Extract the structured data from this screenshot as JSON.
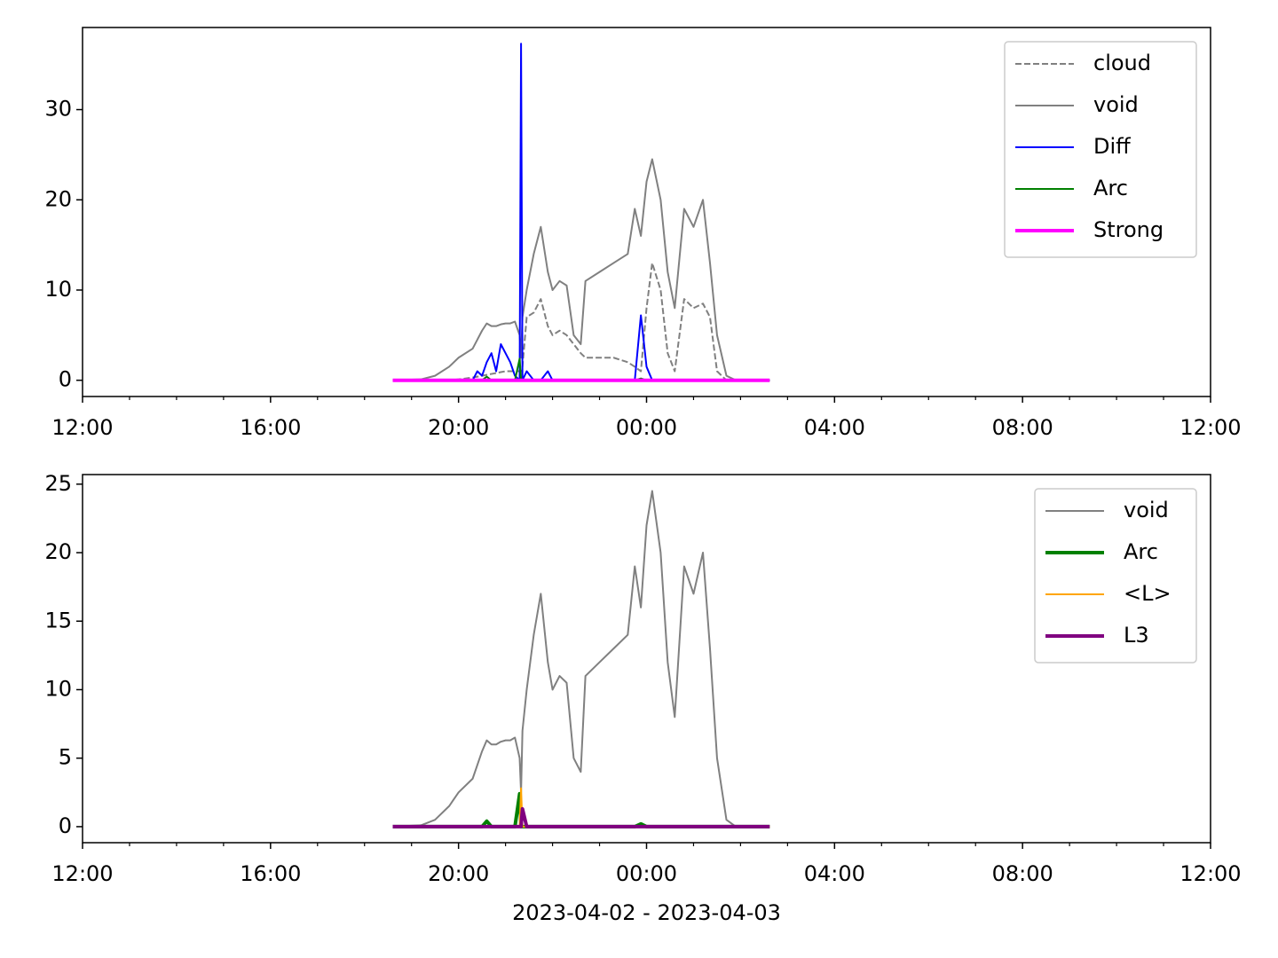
{
  "chart_data": [
    {
      "type": "line",
      "x": [
        18.6,
        19.2,
        19.5,
        19.8,
        20.0,
        20.3,
        20.4,
        20.5,
        20.6,
        20.7,
        20.8,
        20.9,
        21.0,
        21.1,
        21.2,
        21.3,
        21.33,
        21.36,
        21.45,
        21.6,
        21.75,
        21.9,
        22.0,
        22.15,
        22.3,
        22.45,
        22.6,
        22.7,
        23.0,
        23.3,
        23.6,
        23.75,
        23.88,
        24.0,
        24.12,
        24.3,
        24.45,
        24.6,
        24.8,
        25.0,
        25.2,
        25.35,
        25.5,
        25.7,
        25.9,
        26.62
      ],
      "series": [
        {
          "name": "cloud",
          "color": "#808080",
          "linestyle": "dashed",
          "linewidth": 2,
          "values": [
            0,
            0,
            0,
            0,
            0.1,
            0.3,
            0.4,
            0.5,
            0.6,
            0.7,
            0.8,
            0.9,
            1,
            1,
            1,
            1,
            1,
            1.5,
            7,
            7.5,
            9,
            6,
            5,
            5.5,
            5,
            4,
            3,
            2.5,
            2.5,
            2.5,
            2,
            1.5,
            1,
            8,
            13,
            10,
            3,
            1,
            9,
            8,
            8.5,
            7,
            1,
            0,
            0,
            0
          ]
        },
        {
          "name": "void",
          "color": "#808080",
          "linewidth": 2,
          "values": [
            0,
            0.1,
            0.5,
            1.5,
            2.5,
            3.5,
            4.5,
            5.5,
            6.3,
            6,
            6,
            6.2,
            6.3,
            6.3,
            6.5,
            5,
            2.5,
            7,
            10,
            14,
            17,
            12,
            10,
            11,
            10.5,
            5,
            4,
            11,
            12,
            13,
            14,
            19,
            16,
            22,
            24.5,
            20,
            12,
            8,
            19,
            17,
            20,
            13,
            5,
            0.5,
            0,
            0
          ]
        },
        {
          "name": "Diff",
          "color": "#0000ff",
          "linewidth": 2,
          "values": [
            0,
            0,
            0,
            0,
            0,
            0,
            1,
            0.5,
            2,
            3,
            1,
            4,
            3,
            2,
            0.5,
            0,
            37.3,
            0,
            1,
            0,
            0,
            1,
            0,
            0,
            0,
            0,
            0,
            0,
            0,
            0,
            0,
            0,
            7.2,
            1.5,
            0,
            0,
            0,
            0,
            0,
            0,
            0,
            0,
            0,
            0,
            0,
            0
          ]
        },
        {
          "name": "Arc",
          "color": "#008000",
          "linewidth": 2,
          "values": [
            0,
            0,
            0,
            0,
            0,
            0,
            0,
            0,
            0.4,
            0,
            0,
            0,
            0,
            0,
            0,
            2.4,
            0,
            0,
            0,
            0,
            0,
            0,
            0,
            0,
            0,
            0,
            0,
            0,
            0,
            0,
            0,
            0,
            0.2,
            0,
            0,
            0,
            0,
            0,
            0,
            0,
            0,
            0,
            0,
            0,
            0,
            0
          ]
        },
        {
          "name": "Strong",
          "color": "#ff00ff",
          "linewidth": 4,
          "values": [
            0,
            0,
            0,
            0,
            0,
            0,
            0,
            0,
            0,
            0,
            0,
            0,
            0,
            0,
            0,
            0,
            0,
            0,
            0,
            0,
            0,
            0,
            0,
            0,
            0,
            0,
            0,
            0,
            0,
            0,
            0,
            0,
            0,
            0,
            0,
            0,
            0,
            0,
            0,
            0,
            0,
            0,
            0,
            0,
            0,
            0
          ]
        }
      ],
      "xlim": [
        12,
        36
      ],
      "xticks": [
        {
          "value": 12,
          "label": "12:00"
        },
        {
          "value": 16,
          "label": "16:00"
        },
        {
          "value": 20,
          "label": "20:00"
        },
        {
          "value": 24,
          "label": "00:00"
        },
        {
          "value": 28,
          "label": "04:00"
        },
        {
          "value": 32,
          "label": "08:00"
        },
        {
          "value": 36,
          "label": "12:00"
        }
      ],
      "xminorticks": [
        13,
        14,
        15,
        17,
        18,
        19,
        21,
        22,
        23,
        25,
        26,
        27,
        29,
        30,
        31,
        33,
        34,
        35
      ],
      "ylim": [
        -1.8,
        39.1
      ],
      "yticks": [
        0,
        10,
        20,
        30
      ],
      "legend": "upper right"
    },
    {
      "type": "line",
      "x": [
        18.6,
        19.2,
        19.5,
        19.8,
        20.0,
        20.3,
        20.4,
        20.5,
        20.6,
        20.7,
        20.8,
        20.9,
        21.0,
        21.1,
        21.2,
        21.3,
        21.33,
        21.36,
        21.45,
        21.6,
        21.75,
        21.9,
        22.0,
        22.15,
        22.3,
        22.45,
        22.6,
        22.7,
        23.0,
        23.3,
        23.6,
        23.75,
        23.88,
        24.0,
        24.12,
        24.3,
        24.45,
        24.6,
        24.8,
        25.0,
        25.2,
        25.35,
        25.5,
        25.7,
        25.9,
        26.62
      ],
      "series": [
        {
          "name": "void",
          "color": "#808080",
          "linewidth": 2,
          "values": [
            0,
            0.1,
            0.5,
            1.5,
            2.5,
            3.5,
            4.5,
            5.5,
            6.3,
            6,
            6,
            6.2,
            6.3,
            6.3,
            6.5,
            5,
            2.5,
            7,
            10,
            14,
            17,
            12,
            10,
            11,
            10.5,
            5,
            4,
            11,
            12,
            13,
            14,
            19,
            16,
            22,
            24.5,
            20,
            12,
            8,
            19,
            17,
            20,
            13,
            5,
            0.5,
            0,
            0
          ]
        },
        {
          "name": "Arc",
          "color": "#008000",
          "linewidth": 4,
          "values": [
            0,
            0,
            0,
            0,
            0,
            0,
            0,
            0,
            0.4,
            0,
            0,
            0,
            0,
            0,
            0,
            2.4,
            0,
            0,
            0,
            0,
            0,
            0,
            0,
            0,
            0,
            0,
            0,
            0,
            0,
            0,
            0,
            0,
            0.2,
            0,
            0,
            0,
            0,
            0,
            0,
            0,
            0,
            0,
            0,
            0,
            0,
            0
          ]
        },
        {
          "name": "<L>",
          "color": "#ffa500",
          "linewidth": 2,
          "values": [
            0,
            0,
            0,
            0,
            0,
            0,
            0,
            0,
            0,
            0,
            0,
            0,
            0,
            0,
            0,
            0,
            2.8,
            0,
            0,
            0,
            0,
            0,
            0,
            0,
            0,
            0,
            0,
            0,
            0,
            0,
            0,
            0,
            0,
            0,
            0,
            0,
            0,
            0,
            0,
            0,
            0,
            0,
            0,
            0,
            0,
            0
          ]
        },
        {
          "name": "L3",
          "color": "#800080",
          "linewidth": 4,
          "values": [
            0,
            0,
            0,
            0,
            0,
            0,
            0,
            0,
            0,
            0,
            0,
            0,
            0,
            0,
            0,
            0,
            0,
            1.3,
            0,
            0,
            0,
            0,
            0,
            0,
            0,
            0,
            0,
            0,
            0,
            0,
            0,
            0,
            0,
            0,
            0,
            0,
            0,
            0,
            0,
            0,
            0,
            0,
            0,
            0,
            0,
            0
          ]
        }
      ],
      "xlim": [
        12,
        36
      ],
      "xticks": [
        {
          "value": 12,
          "label": "12:00"
        },
        {
          "value": 16,
          "label": "16:00"
        },
        {
          "value": 20,
          "label": "20:00"
        },
        {
          "value": 24,
          "label": "00:00"
        },
        {
          "value": 28,
          "label": "04:00"
        },
        {
          "value": 32,
          "label": "08:00"
        },
        {
          "value": 36,
          "label": "12:00"
        }
      ],
      "xminorticks": [
        13,
        14,
        15,
        17,
        18,
        19,
        21,
        22,
        23,
        25,
        26,
        27,
        29,
        30,
        31,
        33,
        34,
        35
      ],
      "ylim": [
        -1.17,
        25.7
      ],
      "yticks": [
        0,
        5,
        10,
        15,
        20,
        25
      ],
      "xlabel": "2023-04-02 - 2023-04-03",
      "legend": "upper right"
    }
  ]
}
